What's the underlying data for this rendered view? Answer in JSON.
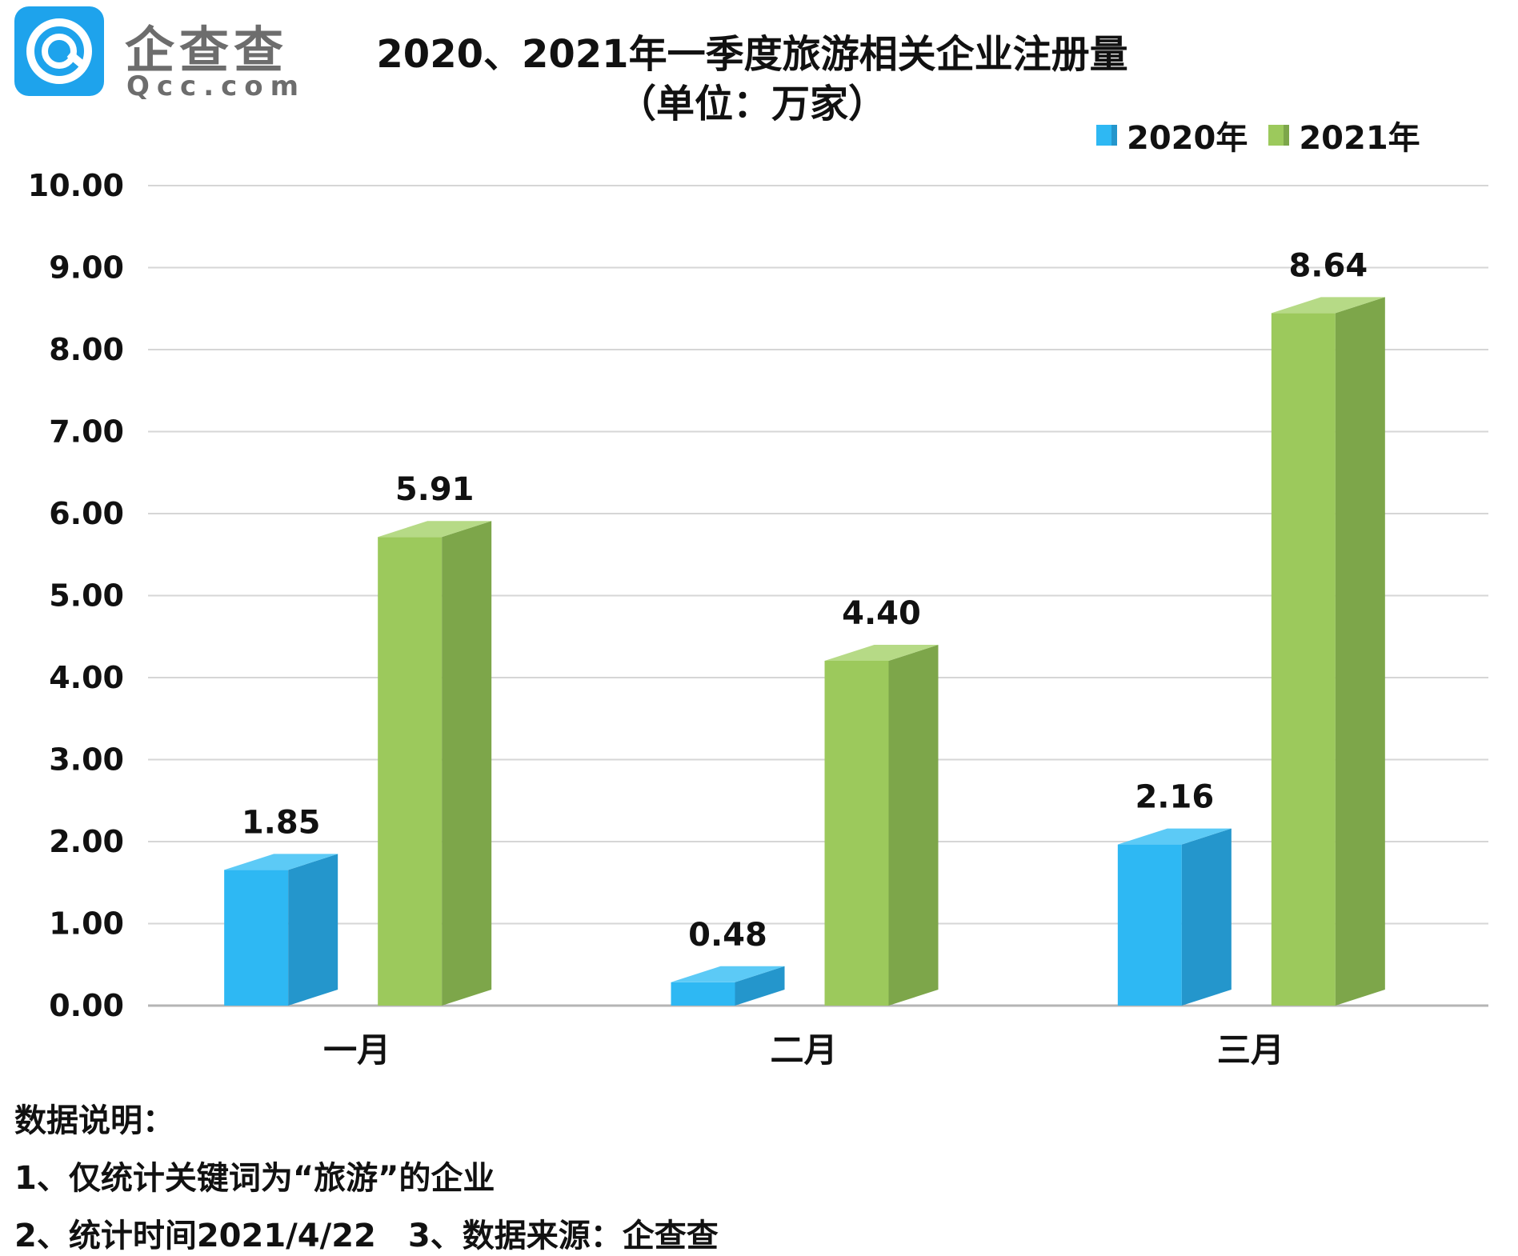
{
  "logo": {
    "name_cn": "企查查",
    "name_en": "Qcc.com",
    "brand_color": "#1ea3ec"
  },
  "chart_data": {
    "type": "bar",
    "title": "2020、2021年一季度旅游相关企业注册量",
    "subtitle": "（单位：万家）",
    "categories": [
      "一月",
      "二月",
      "三月"
    ],
    "series": [
      {
        "name": "2020年",
        "values": [
          1.85,
          0.48,
          2.16
        ],
        "labels": [
          "1.85",
          "0.48",
          "2.16"
        ],
        "color_front": "#2eb8f3",
        "color_side": "#2496cc",
        "color_top": "#5ccaf6"
      },
      {
        "name": "2021年",
        "values": [
          5.91,
          4.4,
          8.64
        ],
        "labels": [
          "5.91",
          "4.40",
          "8.64"
        ],
        "color_front": "#9cc95c",
        "color_side": "#7da64a",
        "color_top": "#b6da86"
      }
    ],
    "ylim": [
      0,
      10
    ],
    "yticks": [
      "0.00",
      "1.00",
      "2.00",
      "3.00",
      "4.00",
      "5.00",
      "6.00",
      "7.00",
      "8.00",
      "9.00",
      "10.00"
    ],
    "legend": "top-right",
    "grid": true,
    "xlabel": "",
    "ylabel": ""
  },
  "notes": {
    "heading": "数据说明：",
    "line1": "1、仅统计关键词为“旅游”的企业",
    "line2a": "2、统计时间2021/4/22",
    "line2b": "3、数据来源：企查查"
  }
}
